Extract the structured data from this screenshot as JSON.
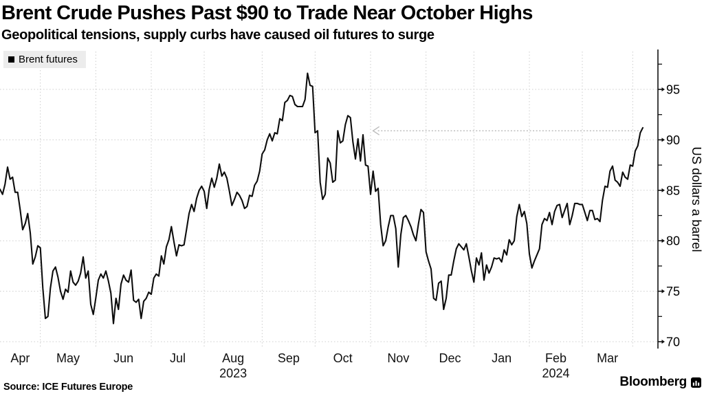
{
  "header": {
    "title": "Brent Crude Pushes Past $90 to Trade Near October Highs",
    "subtitle": "Geopolitical tensions, supply curbs have caused oil futures to surge"
  },
  "legend": {
    "label": "Brent futures",
    "swatch_color": "#000000"
  },
  "footer": {
    "source": "Source: ICE Futures Europe",
    "brand": "Bloomberg"
  },
  "chart_data": {
    "type": "line",
    "title": "Brent Crude Pushes Past $90 to Trade Near October Highs",
    "xlabel": "",
    "ylabel": "US dollars a barrel",
    "ylim": [
      69,
      99
    ],
    "y_ticks": [
      70,
      75,
      80,
      85,
      90,
      95
    ],
    "y_minor_ticks": [
      72.5,
      77.5,
      82.5,
      87.5,
      92.5,
      97.5
    ],
    "grid": "dotted",
    "legend_position": "top-left",
    "x_month_labels": [
      "Apr",
      "May",
      "Jun",
      "Jul",
      "Aug",
      "Sep",
      "Oct",
      "Nov",
      "Dec",
      "Jan",
      "Feb",
      "Mar"
    ],
    "month_start_indices": [
      16,
      38,
      60,
      81,
      104,
      125,
      147,
      169,
      188,
      210,
      231,
      251
    ],
    "year_labels": [
      {
        "text": "2023",
        "month": "Aug"
      },
      {
        "text": "2024",
        "month": "Feb"
      }
    ],
    "annotation": {
      "type": "arrow-left",
      "value": 90.9,
      "from_index": 255,
      "to_index": 148,
      "meaning": "current price back near October highs"
    },
    "colors": {
      "line": "#0d0d0d",
      "grid": "#cccccc",
      "axis": "#111111",
      "arrow": "#bdbdbd",
      "legend_bg": "#ececec",
      "background": "#ffffff"
    },
    "series": [
      {
        "name": "Brent futures",
        "color": "#000000",
        "values": [
          85.1,
          84.6,
          85.6,
          87.3,
          86.1,
          86.3,
          84.8,
          84.8,
          83.1,
          81.1,
          81.7,
          82.7,
          80.8,
          77.7,
          78.4,
          79.5,
          79.3,
          75.3,
          72.3,
          72.5,
          75.3,
          77.0,
          77.4,
          76.4,
          75.0,
          74.2,
          75.2,
          74.9,
          77.0,
          75.9,
          75.6,
          76.0,
          76.8,
          78.4,
          76.3,
          77.0,
          73.7,
          72.7,
          74.3,
          76.1,
          76.7,
          76.3,
          77.0,
          76.0,
          74.8,
          71.8,
          74.3,
          73.2,
          75.7,
          76.6,
          76.1,
          75.9,
          77.1,
          74.1,
          73.9,
          74.2,
          72.3,
          74.0,
          74.3,
          74.9,
          74.7,
          76.3,
          76.7,
          76.5,
          78.5,
          77.7,
          79.4,
          80.1,
          81.4,
          79.9,
          78.5,
          79.6,
          79.5,
          79.6,
          81.1,
          82.7,
          83.6,
          82.9,
          84.2,
          85.0,
          85.4,
          84.9,
          83.2,
          85.1,
          86.2,
          85.3,
          86.2,
          87.6,
          86.4,
          86.8,
          86.2,
          84.9,
          83.5,
          84.1,
          84.8,
          84.5,
          84.0,
          83.2,
          83.4,
          84.5,
          84.4,
          85.5,
          85.9,
          86.9,
          88.6,
          89.0,
          90.0,
          90.6,
          89.9,
          90.7,
          90.6,
          92.1,
          91.9,
          93.7,
          93.9,
          94.4,
          94.3,
          93.5,
          93.3,
          93.3,
          93.3,
          94.0,
          96.6,
          95.4,
          95.3,
          90.7,
          90.9,
          85.8,
          84.1,
          84.6,
          88.2,
          87.7,
          85.8,
          86.0,
          90.9,
          89.7,
          89.9,
          91.5,
          92.4,
          92.2,
          89.8,
          88.1,
          90.1,
          87.9,
          90.5,
          87.5,
          87.4,
          84.6,
          86.9,
          84.9,
          85.2,
          81.6,
          79.5,
          80.0,
          81.4,
          82.5,
          82.5,
          81.2,
          77.4,
          80.6,
          82.3,
          82.5,
          82.0,
          81.4,
          80.6,
          80.0,
          81.7,
          83.1,
          82.8,
          78.9,
          78.0,
          77.2,
          74.3,
          74.1,
          75.8,
          76.0,
          73.2,
          74.3,
          76.6,
          76.6,
          78.0,
          79.2,
          79.7,
          79.4,
          79.1,
          79.7,
          78.4,
          77.0,
          75.9,
          78.3,
          77.6,
          78.8,
          76.1,
          77.6,
          76.8,
          77.4,
          78.3,
          78.2,
          78.3,
          77.9,
          79.1,
          78.6,
          80.1,
          79.6,
          80.0,
          82.4,
          83.6,
          82.4,
          82.9,
          81.7,
          78.7,
          77.3,
          78.0,
          78.6,
          79.2,
          81.6,
          82.2,
          82.0,
          82.8,
          81.6,
          82.9,
          83.5,
          83.6,
          82.3,
          83.0,
          83.7,
          81.6,
          82.5,
          83.7,
          83.7,
          83.6,
          83.6,
          82.8,
          82.0,
          83.0,
          83.0,
          82.1,
          82.2,
          81.9,
          84.0,
          85.4,
          85.3,
          86.9,
          87.4,
          86.0,
          85.8,
          85.4,
          86.8,
          86.3,
          86.1,
          87.5,
          87.4,
          88.9,
          89.4,
          90.7,
          91.2
        ]
      }
    ]
  }
}
